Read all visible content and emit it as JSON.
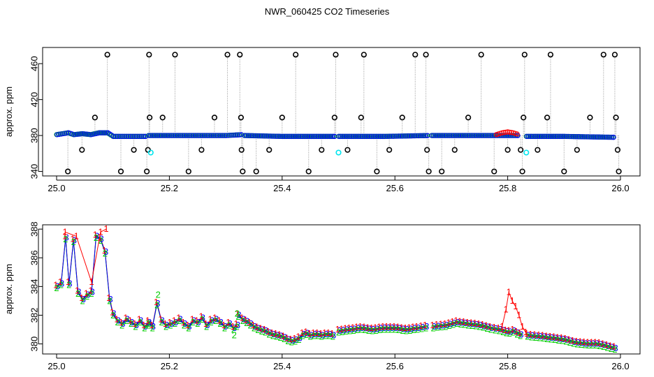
{
  "chart_data": [
    {
      "type": "scatter",
      "title": "NWR_060425  CO2 Timeseries",
      "xlabel": "",
      "ylabel": "approx. ppm",
      "xlim": [
        25.0,
        26.0
      ],
      "ylim": [
        335,
        478
      ],
      "xticks": [
        25.0,
        25.2,
        25.4,
        25.6,
        25.8,
        26.0
      ],
      "yticks": [
        340,
        380,
        420,
        460
      ],
      "grid": false,
      "colors": {
        "baseline": "#0000ff",
        "raw": "#000000",
        "flag": "#00e5ee",
        "red": "#ff0000",
        "green": "#00cc00",
        "connector": "#999999"
      },
      "baseline_segments": [
        {
          "x": [
            25.0,
            25.01,
            25.02,
            25.03,
            25.045,
            25.06,
            25.075,
            25.09,
            25.1,
            25.12,
            25.16
          ],
          "y": [
            381,
            382,
            383,
            381,
            382,
            381,
            383,
            383,
            379,
            379,
            379
          ]
        },
        {
          "x": [
            25.163,
            25.2,
            25.3,
            25.33
          ],
          "y": [
            380,
            380,
            380,
            381
          ]
        },
        {
          "x": [
            25.333,
            25.4,
            25.47,
            25.495
          ],
          "y": [
            380,
            379,
            379,
            379
          ]
        },
        {
          "x": [
            25.5,
            25.58,
            25.66
          ],
          "y": [
            379,
            379,
            380
          ]
        },
        {
          "x": [
            25.665,
            25.75,
            25.82
          ],
          "y": [
            380,
            380,
            380
          ]
        },
        {
          "x": [
            25.833,
            25.9,
            25.99
          ],
          "y": [
            379,
            379,
            378
          ]
        }
      ],
      "red_segment": {
        "x": [
          25.78,
          25.79,
          25.8,
          25.81,
          25.82
        ],
        "y": [
          381,
          383,
          384,
          383,
          381
        ]
      },
      "spikes": [
        {
          "x": 25.02,
          "y": 340
        },
        {
          "x": 25.045,
          "y": 364
        },
        {
          "x": 25.068,
          "y": 400
        },
        {
          "x": 25.09,
          "y": 470
        },
        {
          "x": 25.114,
          "y": 340
        },
        {
          "x": 25.137,
          "y": 364
        },
        {
          "x": 25.16,
          "y": 340
        },
        {
          "x": 25.162,
          "y": 364
        },
        {
          "x": 25.164,
          "y": 470
        },
        {
          "x": 25.165,
          "y": 400
        },
        {
          "x": 25.188,
          "y": 400
        },
        {
          "x": 25.21,
          "y": 470
        },
        {
          "x": 25.234,
          "y": 340
        },
        {
          "x": 25.257,
          "y": 364
        },
        {
          "x": 25.28,
          "y": 400
        },
        {
          "x": 25.303,
          "y": 470
        },
        {
          "x": 25.325,
          "y": 470
        },
        {
          "x": 25.327,
          "y": 400
        },
        {
          "x": 25.328,
          "y": 364
        },
        {
          "x": 25.33,
          "y": 340
        },
        {
          "x": 25.354,
          "y": 340
        },
        {
          "x": 25.377,
          "y": 364
        },
        {
          "x": 25.4,
          "y": 400
        },
        {
          "x": 25.424,
          "y": 470
        },
        {
          "x": 25.447,
          "y": 340
        },
        {
          "x": 25.47,
          "y": 364
        },
        {
          "x": 25.493,
          "y": 400
        },
        {
          "x": 25.495,
          "y": 470
        },
        {
          "x": 25.516,
          "y": 364
        },
        {
          "x": 25.54,
          "y": 400
        },
        {
          "x": 25.545,
          "y": 470
        },
        {
          "x": 25.568,
          "y": 340
        },
        {
          "x": 25.59,
          "y": 364
        },
        {
          "x": 25.613,
          "y": 400
        },
        {
          "x": 25.636,
          "y": 470
        },
        {
          "x": 25.655,
          "y": 470
        },
        {
          "x": 25.657,
          "y": 364
        },
        {
          "x": 25.66,
          "y": 340
        },
        {
          "x": 25.683,
          "y": 340
        },
        {
          "x": 25.706,
          "y": 364
        },
        {
          "x": 25.73,
          "y": 400
        },
        {
          "x": 25.753,
          "y": 470
        },
        {
          "x": 25.776,
          "y": 340
        },
        {
          "x": 25.8,
          "y": 364
        },
        {
          "x": 25.823,
          "y": 364
        },
        {
          "x": 25.826,
          "y": 340
        },
        {
          "x": 25.828,
          "y": 400
        },
        {
          "x": 25.83,
          "y": 470
        },
        {
          "x": 25.853,
          "y": 364
        },
        {
          "x": 25.87,
          "y": 400
        },
        {
          "x": 25.876,
          "y": 470
        },
        {
          "x": 25.9,
          "y": 340
        },
        {
          "x": 25.923,
          "y": 364
        },
        {
          "x": 25.946,
          "y": 400
        },
        {
          "x": 25.97,
          "y": 470
        },
        {
          "x": 25.99,
          "y": 470
        },
        {
          "x": 25.992,
          "y": 400
        },
        {
          "x": 25.995,
          "y": 364
        },
        {
          "x": 25.997,
          "y": 340
        }
      ],
      "flags": [
        {
          "x": 25.167,
          "y": 361
        },
        {
          "x": 25.5,
          "y": 361
        },
        {
          "x": 25.833,
          "y": 361
        }
      ]
    },
    {
      "type": "scatter",
      "title": "",
      "xlabel": "",
      "ylabel": "approx. ppm",
      "xlim": [
        25.0,
        26.0
      ],
      "ylim": [
        379.3,
        388.3
      ],
      "xticks": [
        25.0,
        25.2,
        25.4,
        25.6,
        25.8,
        26.0
      ],
      "yticks": [
        380,
        382,
        384,
        386,
        388
      ],
      "grid": false,
      "series": [
        {
          "name": "1",
          "color": "#ff0000"
        },
        {
          "name": "2",
          "color": "#00cc00"
        },
        {
          "name": "3",
          "color": "#0000ff"
        }
      ],
      "segments": [
        {
          "x": [
            25.0,
            25.008,
            25.016,
            25.022,
            25.03,
            25.038,
            25.046,
            25.054,
            25.062,
            25.07,
            25.078,
            25.086,
            25.094,
            25.1,
            25.108,
            25.116,
            25.124,
            25.132,
            25.14,
            25.148,
            25.156,
            25.163
          ],
          "y": [
            384.0,
            384.2,
            387.4,
            384.2,
            387.2,
            383.6,
            383.1,
            383.4,
            383.6,
            387.5,
            387.3,
            386.4,
            383.1,
            382.1,
            381.6,
            381.4,
            381.7,
            381.5,
            381.3,
            381.6,
            381.2,
            381.4
          ]
        },
        {
          "x": [
            25.163,
            25.17,
            25.178,
            25.186,
            25.194,
            25.202,
            25.21,
            25.218,
            25.226,
            25.234,
            25.242,
            25.25,
            25.258,
            25.266,
            25.274,
            25.282,
            25.29,
            25.298,
            25.306,
            25.314,
            25.32
          ],
          "y": [
            381.5,
            381.2,
            382.8,
            381.6,
            381.3,
            381.4,
            381.5,
            381.7,
            381.4,
            381.2,
            381.6,
            381.5,
            381.8,
            381.3,
            381.6,
            381.7,
            381.5,
            381.2,
            381.4,
            381.1,
            381.3
          ]
        },
        {
          "x": [
            25.322,
            25.33,
            25.34,
            25.35,
            25.36,
            25.37,
            25.38,
            25.39,
            25.4,
            25.41,
            25.42,
            25.43,
            25.44,
            25.45,
            25.46,
            25.47,
            25.48,
            25.49
          ],
          "y": [
            382.0,
            381.7,
            381.5,
            381.2,
            381.0,
            380.9,
            380.7,
            380.6,
            380.5,
            380.3,
            380.2,
            380.4,
            380.8,
            380.6,
            380.7,
            380.6,
            380.7,
            380.6
          ]
        },
        {
          "x": [
            25.5,
            25.52,
            25.54,
            25.56,
            25.58,
            25.6,
            25.62,
            25.64,
            25.655
          ],
          "y": [
            380.9,
            381.0,
            381.1,
            381.0,
            381.1,
            381.1,
            381.0,
            381.1,
            381.2
          ]
        },
        {
          "x": [
            25.668,
            25.69,
            25.71,
            25.73,
            25.75,
            25.77,
            25.785,
            25.795,
            25.8,
            25.81,
            25.82,
            25.825
          ],
          "y": [
            381.2,
            381.3,
            381.5,
            381.4,
            381.3,
            381.1,
            381.0,
            380.9,
            380.8,
            380.9,
            380.7,
            380.6
          ]
        },
        {
          "x": [
            25.835,
            25.86,
            25.88,
            25.9,
            25.92,
            25.94,
            25.96,
            25.98,
            25.99
          ],
          "y": [
            380.6,
            380.5,
            380.4,
            380.3,
            380.1,
            380.0,
            380.0,
            379.8,
            379.7
          ]
        }
      ],
      "red_excursions": [
        {
          "x": [
            25.015,
            25.035,
            25.062,
            25.078,
            25.088
          ],
          "y": [
            387.8,
            387.5,
            384.3,
            387.8,
            388.0
          ]
        },
        {
          "x": [
            25.79,
            25.797,
            25.802,
            25.808,
            25.814,
            25.82,
            25.826,
            25.832
          ],
          "y": [
            381.2,
            382.4,
            383.6,
            383.0,
            382.6,
            382.0,
            381.2,
            380.8
          ]
        }
      ],
      "green_excursions": [
        {
          "x": [
            25.18,
            25.32,
            25.315
          ],
          "y": [
            383.4,
            382.1,
            380.6
          ]
        }
      ]
    }
  ]
}
